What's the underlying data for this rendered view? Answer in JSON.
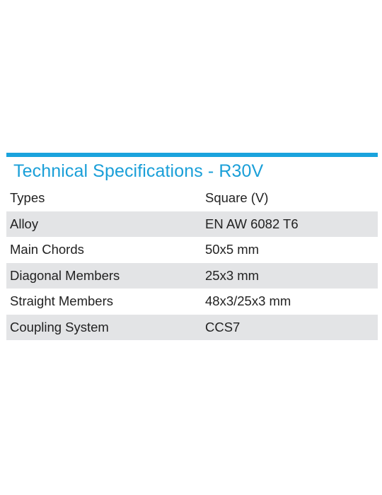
{
  "spec_sheet": {
    "title": "Technical Specifications - R30V",
    "accent_color": "#1aa3dd",
    "shaded_row_color": "#e3e4e6",
    "rows": [
      {
        "label": "Types",
        "value": "Square (V)"
      },
      {
        "label": "Alloy",
        "value": "EN AW 6082 T6"
      },
      {
        "label": "Main Chords",
        "value": "50x5 mm"
      },
      {
        "label": "Diagonal Members",
        "value": "25x3 mm"
      },
      {
        "label": "Straight Members",
        "value": "48x3/25x3 mm"
      },
      {
        "label": "Coupling System",
        "value": "CCS7"
      }
    ]
  }
}
